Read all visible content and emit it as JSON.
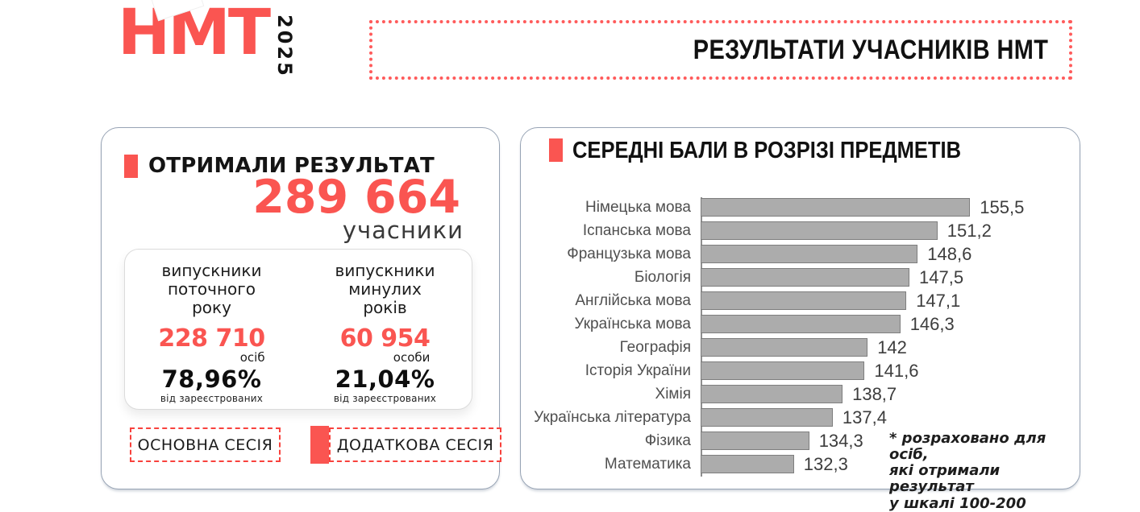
{
  "colors": {
    "accent": "#FA5551",
    "bar_fill": "#ACACAC",
    "bar_border": "#7E7E7E",
    "card_border": "#97A3B4"
  },
  "logo": {
    "text": "НМТ",
    "year": "2025"
  },
  "header": {
    "title": "РЕЗУЛЬТАТИ УЧАСНИКІВ НМТ"
  },
  "results_card": {
    "title": "ОТРИМАЛИ РЕЗУЛЬТАТ",
    "total": "289 664",
    "total_unit": "учасники",
    "groups": [
      {
        "label_lines": [
          "випускники",
          "поточного",
          "року"
        ],
        "count": "228 710",
        "unit": "осіб",
        "percent": "78,96%",
        "percent_note": "від зареєстрованих"
      },
      {
        "label_lines": [
          "випускники",
          "минулих",
          "років"
        ],
        "count": "60 954",
        "unit": "особи",
        "percent": "21,04%",
        "percent_note": "від зареєстрованих"
      }
    ],
    "sessions": [
      {
        "label": "ОСНОВНА СЕСІЯ"
      },
      {
        "label": "ДОДАТКОВА СЕСІЯ"
      }
    ]
  },
  "chart_card": {
    "title": "СЕРЕДНІ БАЛИ В РОЗРІЗІ ПРЕДМЕТІВ",
    "note_lines": [
      "* розраховано для осіб,",
      "які отримали результат",
      "у шкалі 100-200"
    ]
  },
  "chart_data": {
    "type": "bar",
    "orientation": "horizontal",
    "title": "СЕРЕДНІ БАЛИ В РОЗРІЗІ ПРЕДМЕТІВ",
    "categories": [
      "Німецька мова",
      "Іспанська мова",
      "Французька мова",
      "Біологія",
      "Англійська мова",
      "Українська мова",
      "Географія",
      "Історія України",
      "Хімія",
      "Українська література",
      "Фізика",
      "Математика"
    ],
    "values": [
      155.5,
      151.2,
      148.6,
      147.5,
      147.1,
      146.3,
      142,
      141.6,
      138.7,
      137.4,
      134.3,
      132.3
    ],
    "value_labels": [
      "155,5",
      "151,2",
      "148,6",
      "147,5",
      "147,1",
      "146,3",
      "142",
      "141,6",
      "138,7",
      "137,4",
      "134,3",
      "132,3"
    ],
    "xlim": [
      120,
      156
    ],
    "grid": false,
    "legend": false,
    "bar_color": "#ACACAC",
    "bar_border": "#7E7E7E",
    "footnote": "* розраховано для осіб, які отримали результат у шкалі 100-200"
  }
}
